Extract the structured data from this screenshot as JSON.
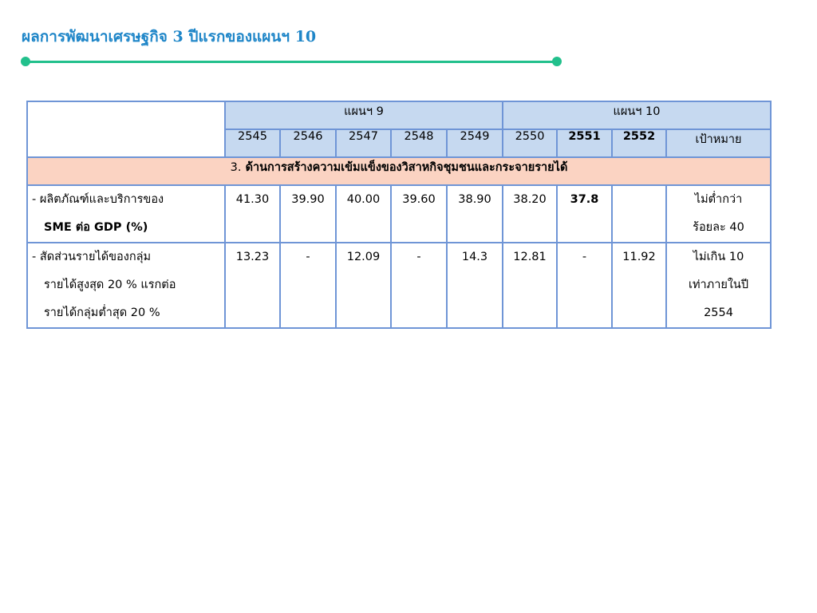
{
  "title": "ผลการพัฒนาเศรษฐกิจ 3 ปีแรกของแผนฯ 10",
  "table": {
    "plan9": "แผนฯ 9",
    "plan10": "แผนฯ 10",
    "years": [
      "2545",
      "2546",
      "2547",
      "2548",
      "2549",
      "2550",
      "2551",
      "2552"
    ],
    "target_header": "เป้าหมาย",
    "section": {
      "number": "3.",
      "label": "ด้านการสร้างความเข้มแข็งของวิสาหกิจชุมชนและกระจายรายได้"
    },
    "rows": [
      {
        "label_lines": [
          "- ผลิตภัณฑ์และบริการของ",
          "SME ต่อ  GDP (%)"
        ],
        "values": [
          "41.30",
          "39.90",
          "40.00",
          "39.60",
          "38.90",
          "38.20",
          "37.8",
          ""
        ],
        "target_lines": [
          "ไม่ต่ำกว่า",
          "ร้อยละ 40"
        ]
      },
      {
        "label_lines": [
          "- สัดส่วนรายได้ของกลุ่ม",
          "รายได้สูงสุด 20 % แรกต่อ",
          "รายได้กลุ่มต่ำสุด 20 %"
        ],
        "values": [
          "13.23",
          "-",
          "12.09",
          "-",
          "14.3",
          "12.81",
          "-",
          "11.92"
        ],
        "target_lines": [
          "ไม่เกิน 10",
          "เท่าภายในปี",
          "2554"
        ]
      }
    ]
  }
}
